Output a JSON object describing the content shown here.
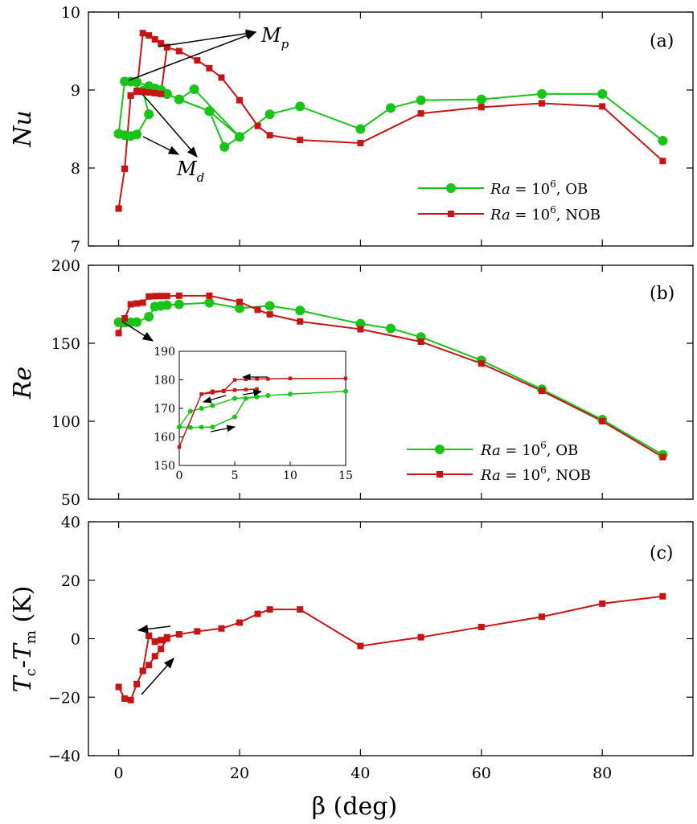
{
  "colors": {
    "ob": "#18c418",
    "nob": "#c81414",
    "axis": "#000000"
  },
  "x_axis": {
    "label": "β (deg)",
    "range": [
      -5,
      95
    ],
    "ticks": [
      0,
      20,
      40,
      60,
      80
    ]
  },
  "chart_data": [
    {
      "type": "line",
      "panel_tag": "(a)",
      "ylabel": "Nu",
      "xlim": [
        -5,
        95
      ],
      "ylim": [
        7,
        10
      ],
      "yticks": [
        7,
        8,
        9,
        10
      ],
      "legend": {
        "position": "bottom-right",
        "entries": [
          "Ra = 10^6, OB",
          "Ra = 10^6, NOB"
        ]
      },
      "legend_text": {
        "prefix": "Ra",
        "eq": " = 10",
        "exp": "6",
        "ob": ", OB",
        "nob": ", NOB"
      },
      "series": [
        {
          "name": "Ra = 10^6, OB",
          "marker": "circle",
          "color": "#18c418",
          "x": [
            0,
            1,
            2,
            3,
            5,
            4,
            6,
            7,
            8,
            10,
            12.5,
            20,
            17.5,
            15,
            10,
            8,
            7,
            6,
            5,
            3,
            2,
            1,
            0
          ],
          "y": [
            8.44,
            8.42,
            8.41,
            8.43,
            8.69,
            8.99,
            9.02,
            8.98,
            8.95,
            8.88,
            9.01,
            8.4,
            8.27,
            8.73,
            8.88,
            8.95,
            9.0,
            9.02,
            9.05,
            9.1,
            9.11,
            9.11,
            8.44
          ]
        },
        {
          "name": "Ra = 10^6, NOB",
          "marker": "square",
          "color": "#c81414",
          "x": [
            0,
            1,
            2,
            3,
            4,
            5,
            6,
            7,
            8,
            7,
            6,
            5,
            4,
            3,
            2,
            1,
            0
          ],
          "y": [
            7.48,
            7.99,
            8.93,
            8.98,
            9.73,
            9.7,
            9.65,
            9.6,
            9.55,
            8.95,
            8.96,
            8.97,
            8.98,
            8.99,
            8.93,
            7.99,
            7.48
          ]
        }
      ],
      "series_tail": {
        "ob_x": [
          8,
          10,
          15,
          20,
          25,
          30,
          40,
          45,
          50,
          60,
          70,
          80,
          90
        ],
        "ob_y": [
          8.95,
          8.88,
          8.73,
          8.4,
          8.69,
          8.79,
          8.5,
          8.77,
          8.87,
          8.88,
          8.95,
          8.95,
          8.35
        ],
        "nob_x": [
          8,
          10,
          13,
          15,
          17,
          20,
          23,
          25,
          30,
          40,
          50,
          60,
          70,
          80,
          90
        ],
        "nob_y": [
          9.55,
          9.5,
          9.38,
          9.28,
          9.16,
          8.87,
          8.54,
          8.42,
          8.36,
          8.32,
          8.7,
          8.78,
          8.83,
          8.79,
          8.09
        ]
      },
      "annotations": [
        {
          "text": "M",
          "sub": "p"
        },
        {
          "text": "M",
          "sub": "d"
        }
      ]
    },
    {
      "type": "line",
      "panel_tag": "(b)",
      "ylabel": "Re",
      "xlim": [
        -5,
        95
      ],
      "ylim": [
        50,
        200
      ],
      "yticks": [
        50,
        100,
        150,
        200
      ],
      "legend": {
        "position": "bottom-right",
        "entries": [
          "Ra = 10^6, OB",
          "Ra = 10^6, NOB"
        ]
      },
      "series": [
        {
          "name": "Ra = 10^6, OB",
          "marker": "circle",
          "color": "#18c418",
          "x": [
            0,
            1,
            2,
            3,
            5,
            6,
            7,
            8,
            10,
            15,
            20,
            25,
            30,
            40,
            45,
            50,
            60,
            70,
            80,
            90
          ],
          "y": [
            163.5,
            163.3,
            163.4,
            163.5,
            167.0,
            173.5,
            174.0,
            174.5,
            175.0,
            176.0,
            172.5,
            174.0,
            171.0,
            162.5,
            159.5,
            154.0,
            139.0,
            120.5,
            101.0,
            78.5
          ]
        },
        {
          "name": "Ra = 10^6, NOB",
          "marker": "square",
          "color": "#c81414",
          "x": [
            0,
            1,
            2,
            3,
            4,
            5,
            6,
            7,
            8,
            10,
            15,
            20,
            23,
            25,
            30,
            40,
            50,
            60,
            70,
            80,
            90
          ],
          "y": [
            156.5,
            166.0,
            175.0,
            175.5,
            176.0,
            180.0,
            180.2,
            180.3,
            180.3,
            180.5,
            180.5,
            176.5,
            171.5,
            168.5,
            164.0,
            159.0,
            151.0,
            137.0,
            119.5,
            100.0,
            77.0
          ]
        }
      ],
      "inset": {
        "xlim": [
          0,
          15
        ],
        "ylim": [
          150,
          190
        ],
        "xticks": [
          0,
          5,
          10,
          15
        ],
        "yticks": [
          150,
          160,
          170,
          180,
          190
        ],
        "ob_x": [
          0,
          1,
          2,
          3,
          5,
          6,
          7,
          8,
          10,
          15
        ],
        "ob_y": [
          163.5,
          163.3,
          163.4,
          163.5,
          167.0,
          173.5,
          174.0,
          174.5,
          175.0,
          176.0
        ],
        "ob_back_x": [
          7,
          5,
          3,
          2,
          1,
          0
        ],
        "ob_back_y": [
          174.0,
          173.5,
          171.0,
          170.0,
          169.0,
          163.5
        ],
        "nob_x": [
          0,
          2,
          3,
          4,
          5,
          6,
          7,
          8,
          10,
          15
        ],
        "nob_y": [
          156.5,
          175.0,
          175.5,
          176.0,
          180.0,
          180.2,
          180.3,
          180.3,
          180.5,
          180.5
        ],
        "nob_back_x": [
          7,
          6,
          5,
          4,
          3,
          2
        ],
        "nob_back_y": [
          176.8,
          176.6,
          176.4,
          176.2,
          176.0,
          175.0
        ]
      }
    },
    {
      "type": "line",
      "panel_tag": "(c)",
      "ylabel": "T_c-T_m (K)",
      "ylabel_parts": {
        "t1": "T",
        "s1": "c",
        "dash": "-",
        "t2": "T",
        "s2": "m",
        "unit": " (K)"
      },
      "xlim": [
        -5,
        95
      ],
      "ylim": [
        -40,
        40
      ],
      "yticks": [
        -40,
        -20,
        0,
        20,
        40
      ],
      "ytick_labels": [
        "−40",
        "−20",
        "0",
        "20",
        "40"
      ],
      "series": [
        {
          "name": "Tc-Tm",
          "marker": "square",
          "color": "#c81414",
          "x": [
            0,
            1,
            2,
            3,
            4,
            5,
            6,
            7,
            8,
            7,
            6,
            5,
            4,
            5,
            6,
            7,
            8,
            10,
            13,
            17,
            20,
            23,
            25,
            30,
            40,
            50,
            60,
            70,
            80,
            90
          ],
          "y": [
            -16.5,
            -20.5,
            -21.0,
            -15.5,
            -11.0,
            -9.0,
            -6.0,
            -3.5,
            0.0,
            -0.5,
            -1.0,
            1.0,
            -11.0,
            1.0,
            -1.0,
            -0.5,
            0.5,
            1.5,
            2.5,
            3.5,
            5.5,
            8.5,
            10.0,
            10.0,
            -2.5,
            0.5,
            4.0,
            7.5,
            12.0,
            14.5
          ]
        }
      ]
    }
  ]
}
